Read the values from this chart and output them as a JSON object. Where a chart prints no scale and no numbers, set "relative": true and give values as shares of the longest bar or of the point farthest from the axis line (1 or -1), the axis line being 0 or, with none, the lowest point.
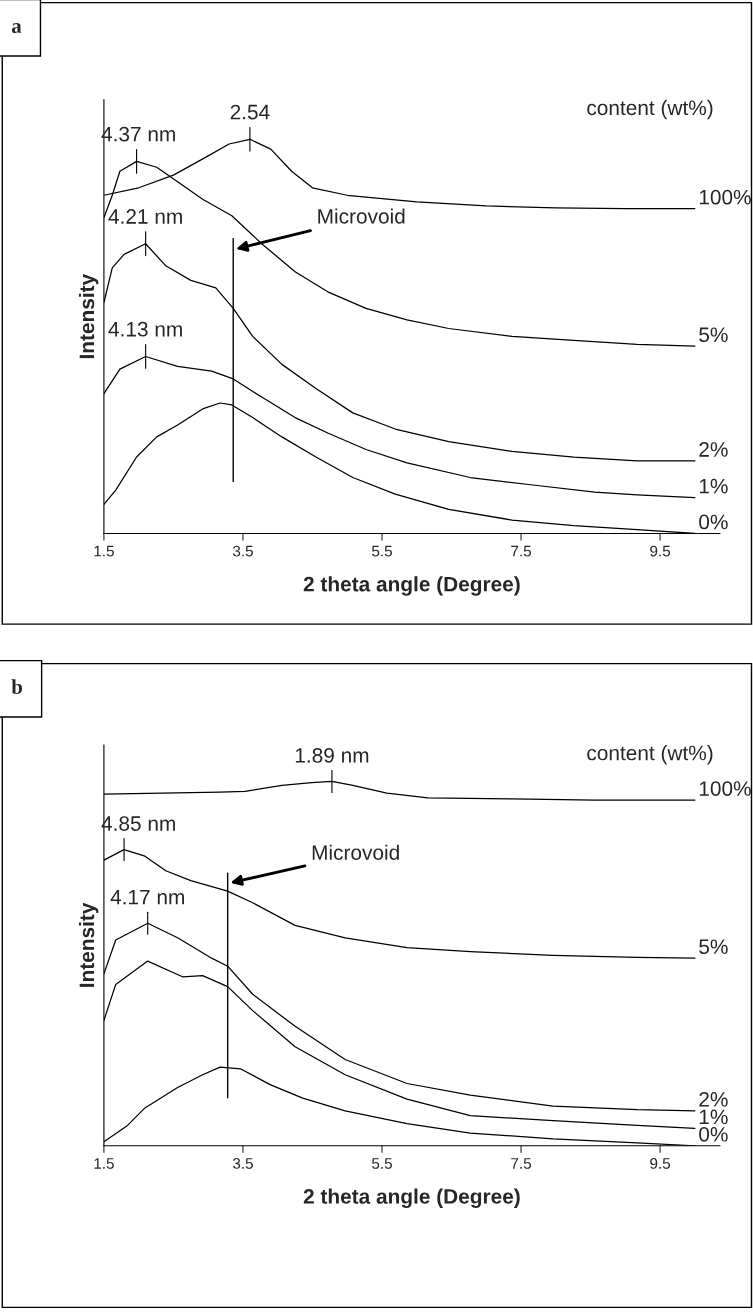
{
  "chart_data": [
    {
      "type": "line",
      "title": "a",
      "xlabel": "2 theta angle (Degree)",
      "ylabel": "Intensity",
      "legend_title": "content (wt%)",
      "relative": true,
      "xlim": [
        1.5,
        10.36
      ],
      "xticks": [
        1.5,
        3.5,
        5.5,
        7.5,
        9.5
      ],
      "legend": false,
      "grid": false,
      "marker": "none",
      "line_style": "solid",
      "series": [
        {
          "name": "100%",
          "color": "#000000",
          "x": [
            1.5,
            2.0,
            2.5,
            3.0,
            3.3,
            3.6,
            3.9,
            4.2,
            4.5,
            5.0,
            6.0,
            7.0,
            8.0,
            9.0,
            10.0
          ],
          "values": [
            0.858,
            0.877,
            0.909,
            0.958,
            0.988,
            1.0,
            0.975,
            0.919,
            0.877,
            0.858,
            0.841,
            0.831,
            0.826,
            0.824,
            0.824
          ]
        },
        {
          "name": "5%",
          "color": "#000000",
          "x": [
            1.5,
            1.62,
            1.73,
            1.97,
            2.26,
            2.56,
            2.92,
            3.34,
            3.77,
            4.25,
            4.72,
            5.27,
            5.86,
            6.46,
            7.37,
            8.26,
            9.17,
            10.0
          ],
          "values": [
            0.801,
            0.858,
            0.919,
            0.944,
            0.929,
            0.892,
            0.848,
            0.806,
            0.735,
            0.664,
            0.613,
            0.571,
            0.542,
            0.52,
            0.5,
            0.49,
            0.48,
            0.475
          ]
        },
        {
          "name": "2%",
          "color": "#000000",
          "x": [
            1.5,
            1.62,
            1.79,
            2.1,
            2.39,
            2.75,
            3.11,
            3.36,
            3.64,
            4.06,
            4.55,
            5.08,
            5.69,
            6.46,
            7.37,
            8.26,
            9.17,
            10.0
          ],
          "values": [
            0.586,
            0.674,
            0.708,
            0.735,
            0.679,
            0.642,
            0.623,
            0.571,
            0.5,
            0.429,
            0.368,
            0.306,
            0.265,
            0.233,
            0.208,
            0.194,
            0.184,
            0.184
          ]
        },
        {
          "name": "1%",
          "color": "#000000",
          "x": [
            1.5,
            1.73,
            2.1,
            2.56,
            3.05,
            3.36,
            3.77,
            4.25,
            4.72,
            5.27,
            5.86,
            6.77,
            7.67,
            8.56,
            9.17,
            10.0
          ],
          "values": [
            0.355,
            0.417,
            0.449,
            0.424,
            0.412,
            0.392,
            0.346,
            0.294,
            0.255,
            0.213,
            0.179,
            0.142,
            0.123,
            0.105,
            0.098,
            0.091
          ]
        },
        {
          "name": "0%",
          "color": "#000000",
          "x": [
            1.5,
            1.67,
            1.97,
            2.26,
            2.56,
            2.92,
            3.17,
            3.34,
            3.64,
            4.06,
            4.55,
            5.08,
            5.69,
            6.46,
            7.37,
            8.26,
            9.17,
            10.0
          ],
          "values": [
            0.074,
            0.11,
            0.194,
            0.245,
            0.275,
            0.316,
            0.331,
            0.326,
            0.294,
            0.245,
            0.194,
            0.142,
            0.1,
            0.061,
            0.034,
            0.02,
            0.01,
            0.0
          ]
        }
      ],
      "ref_lines": [
        {
          "axis": "x",
          "value": 3.36,
          "label": "Microvoid"
        }
      ],
      "annotations": [
        {
          "text": "2.54",
          "x": 3.6,
          "y": 1.0
        },
        {
          "text": "4.37 nm",
          "x": 1.97,
          "y": 0.944
        },
        {
          "text": "4.21 nm",
          "x": 2.1,
          "y": 0.735
        },
        {
          "text": "4.13 nm",
          "x": 2.1,
          "y": 0.449
        }
      ]
    },
    {
      "type": "line",
      "title": "b",
      "xlabel": "2 theta angle (Degree)",
      "ylabel": "Intensity",
      "legend_title": "content (wt%)",
      "relative": true,
      "xlim": [
        1.5,
        10.36
      ],
      "xticks": [
        1.5,
        3.5,
        5.5,
        7.5,
        9.5
      ],
      "legend": false,
      "grid": false,
      "marker": "none",
      "line_style": "solid",
      "series": [
        {
          "name": "100%",
          "color": "#000000",
          "x": [
            1.5,
            3.17,
            3.53,
            4.06,
            4.49,
            4.78,
            5.08,
            5.57,
            6.16,
            7.37,
            8.56,
            10.0
          ],
          "values": [
            0.965,
            0.971,
            0.973,
            0.989,
            0.997,
            1.0,
            0.989,
            0.968,
            0.955,
            0.952,
            0.949,
            0.949
          ]
        },
        {
          "name": "5%",
          "color": "#000000",
          "x": [
            1.5,
            1.79,
            2.09,
            2.39,
            2.75,
            3.28,
            3.64,
            4.25,
            4.97,
            5.86,
            6.77,
            7.96,
            9.17,
            10.0
          ],
          "values": [
            0.784,
            0.813,
            0.795,
            0.755,
            0.728,
            0.699,
            0.667,
            0.605,
            0.571,
            0.544,
            0.533,
            0.523,
            0.517,
            0.515
          ]
        },
        {
          "name": "2%",
          "color": "#000000",
          "x": [
            1.5,
            1.67,
            2.13,
            2.56,
            3.05,
            3.28,
            3.64,
            4.25,
            4.97,
            5.86,
            6.77,
            7.96,
            9.17,
            10.0
          ],
          "values": [
            0.472,
            0.565,
            0.611,
            0.571,
            0.515,
            0.493,
            0.416,
            0.328,
            0.237,
            0.171,
            0.139,
            0.109,
            0.099,
            0.096
          ]
        },
        {
          "name": "1%",
          "color": "#000000",
          "x": [
            1.5,
            1.67,
            2.13,
            2.63,
            2.92,
            3.28,
            3.64,
            4.25,
            4.97,
            5.86,
            6.77,
            7.96,
            9.17,
            10.0
          ],
          "values": [
            0.344,
            0.443,
            0.507,
            0.464,
            0.467,
            0.437,
            0.371,
            0.272,
            0.195,
            0.128,
            0.083,
            0.069,
            0.056,
            0.048
          ]
        },
        {
          "name": "0%",
          "color": "#000000",
          "x": [
            1.5,
            1.84,
            2.09,
            2.56,
            2.92,
            3.17,
            3.47,
            3.89,
            4.36,
            4.97,
            5.86,
            6.77,
            7.96,
            9.17,
            10.0
          ],
          "values": [
            0.011,
            0.056,
            0.104,
            0.16,
            0.195,
            0.216,
            0.211,
            0.168,
            0.131,
            0.096,
            0.061,
            0.035,
            0.019,
            0.008,
            0.0
          ]
        }
      ],
      "ref_lines": [
        {
          "axis": "x",
          "value": 3.28,
          "label": "Microvoid"
        }
      ],
      "annotations": [
        {
          "text": "1.89 nm",
          "x": 4.78,
          "y": 1.0
        },
        {
          "text": "4.85 nm",
          "x": 1.79,
          "y": 0.813
        },
        {
          "text": "4.17 nm",
          "x": 2.13,
          "y": 0.611
        }
      ]
    }
  ]
}
